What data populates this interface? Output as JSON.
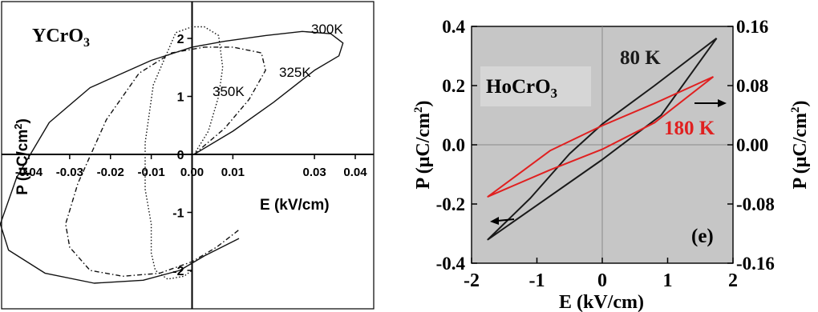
{
  "chart_data": [
    {
      "type": "line",
      "panel": "left",
      "title": "YCrO₃",
      "title_parts": {
        "base": "YCrO",
        "sub": "3"
      },
      "title_color": "#c0141c",
      "xlabel": "E (kV/cm)",
      "ylabel": "P (μC/cm²)",
      "ylabel_parts": {
        "base": "P (μC/cm",
        "sup": "2",
        "close": ")"
      },
      "xlim": [
        -0.05,
        0.05
      ],
      "ylim": [
        -2.5,
        2.3
      ],
      "xtick_labels": [
        "-0.04",
        "-0.03",
        "-0.02",
        "-0.01",
        "0.00",
        "0.01",
        "0.03",
        "0.04"
      ],
      "ytick_labels": [
        "-2",
        "-1",
        "0",
        "1",
        "2"
      ],
      "grid": false,
      "series": [
        {
          "name": "300K",
          "style": "solid",
          "x": [
            0.0005,
            0.01,
            0.02,
            0.03,
            0.036,
            0.037,
            0.034,
            0.027,
            0.018,
            0.008,
            0.0,
            -0.01,
            -0.025,
            -0.035,
            -0.043,
            -0.047,
            -0.045,
            -0.036,
            -0.024,
            -0.012,
            -0.003,
            0.003,
            0.0115
          ],
          "y": [
            0.0,
            0.4,
            0.9,
            1.45,
            1.7,
            1.92,
            2.08,
            2.12,
            2.05,
            1.95,
            1.85,
            1.62,
            1.15,
            0.55,
            -0.4,
            -1.2,
            -1.65,
            -2.05,
            -2.22,
            -2.17,
            -2.0,
            -1.75,
            -1.45
          ]
        },
        {
          "name": "325K",
          "style": "dash-dot",
          "x": [
            0.0005,
            0.008,
            0.014,
            0.018,
            0.017,
            0.01,
            0.003,
            -0.005,
            -0.013,
            -0.021,
            -0.028,
            -0.031,
            -0.03,
            -0.025,
            -0.017,
            -0.008,
            0.0,
            0.006,
            0.0115
          ],
          "y": [
            0.0,
            0.45,
            0.95,
            1.45,
            1.75,
            1.85,
            1.85,
            1.75,
            1.4,
            0.6,
            -0.5,
            -1.2,
            -1.6,
            -2.0,
            -2.1,
            -2.05,
            -1.85,
            -1.6,
            -1.3
          ]
        },
        {
          "name": "350K",
          "style": "dotted",
          "x": [
            0.0005,
            0.004,
            0.0065,
            0.0075,
            0.0065,
            0.003,
            0.0,
            -0.004,
            -0.0095,
            -0.0115,
            -0.0115,
            -0.01,
            -0.01,
            -0.009,
            -0.006,
            -0.002,
            0.0
          ],
          "y": [
            0.0,
            0.4,
            1.0,
            1.5,
            2.05,
            2.2,
            2.2,
            2.1,
            1.2,
            0.2,
            -0.6,
            -1.2,
            -1.7,
            -2.0,
            -2.15,
            -2.1,
            -2.0
          ]
        }
      ],
      "annotations": [
        "300K",
        "325K",
        "350K"
      ]
    },
    {
      "type": "line",
      "panel": "right",
      "title": "HoCrO₃",
      "title_parts": {
        "base": "HoCrO",
        "sub": "3"
      },
      "title_color": "#2e78c6",
      "panel_label": "(e)",
      "xlabel": "E (kV/cm)",
      "ylabel": "P (μC/cm²)",
      "y2label": "P (μC/cm²)",
      "ylabel_parts": {
        "base": "P (μC/cm",
        "sup": "2",
        "close": ")"
      },
      "xlim": [
        -2,
        2
      ],
      "ylim": [
        -0.4,
        0.4
      ],
      "y2lim": [
        -0.16,
        0.16
      ],
      "xtick_labels": [
        "-2",
        "-1",
        "0",
        "1",
        "2"
      ],
      "ytick_labels": [
        "-0.4",
        "-0.2",
        "0.0",
        "0.2",
        "0.4"
      ],
      "y2tick_labels": [
        "-0.16",
        "-0.08",
        "0.00",
        "0.08",
        "0.16"
      ],
      "background": "#c6c6c6",
      "grid": false,
      "series": [
        {
          "name": "80 K",
          "axis": "left",
          "color": "#1a1a1a",
          "x": [
            1.75,
            0.8,
            0.0,
            -0.5,
            -1.1,
            -1.75,
            0.0,
            0.9,
            1.75
          ],
          "y": [
            0.36,
            0.2,
            0.07,
            -0.03,
            -0.18,
            -0.32,
            -0.05,
            0.1,
            0.36
          ]
        },
        {
          "name": "180 K",
          "axis": "right",
          "color": "#e02020",
          "x": [
            1.7,
            0.8,
            0.0,
            -0.8,
            -1.75,
            -0.8,
            0.0,
            0.8,
            1.7
          ],
          "y": [
            0.092,
            0.056,
            0.026,
            -0.008,
            -0.07,
            -0.034,
            -0.006,
            0.03,
            0.092
          ]
        }
      ],
      "annotations": [
        "80 K",
        "180 K"
      ]
    }
  ]
}
